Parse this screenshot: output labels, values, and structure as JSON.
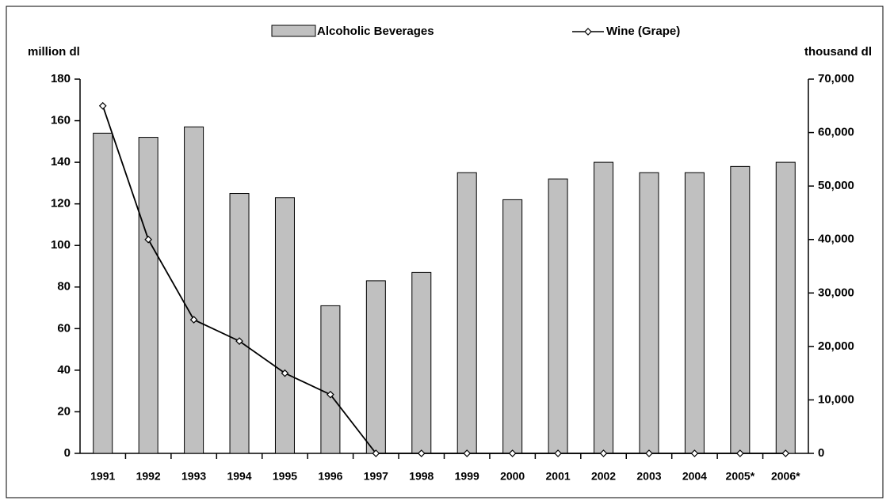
{
  "chart_data": {
    "type": "bar_line",
    "y_label": "million dl",
    "y2_label": "thousand dl",
    "categories": [
      "1991",
      "1992",
      "1993",
      "1994",
      "1995",
      "1996",
      "1997",
      "1998",
      "1999",
      "2000",
      "2001",
      "2002",
      "2003",
      "2004",
      "2005*",
      "2006*"
    ],
    "series": [
      {
        "name": "Alcoholic Beverages",
        "type": "bar",
        "color": "#c0c0c0",
        "axis": "y",
        "values": [
          154,
          152,
          157,
          125,
          123,
          71,
          83,
          87,
          135,
          122,
          132,
          140,
          135,
          135,
          138,
          140
        ]
      },
      {
        "name": "Wine (Grape)",
        "type": "line",
        "color": "#000000",
        "axis": "y2",
        "values": [
          65000,
          40000,
          25000,
          21000,
          15000,
          11000,
          0,
          0,
          0,
          0,
          0,
          0,
          0,
          0,
          0,
          0
        ]
      }
    ],
    "ylim": [
      0,
      180
    ],
    "yticks": [
      0,
      20,
      40,
      60,
      80,
      100,
      120,
      140,
      160,
      180
    ],
    "y2lim": [
      0,
      70000
    ],
    "y2ticks": [
      0,
      {
        "value": 10000,
        "label": "10,000"
      },
      {
        "value": 20000,
        "label": "20,000"
      },
      {
        "value": 30000,
        "label": "30,000"
      },
      {
        "value": 40000,
        "label": "40,000"
      },
      {
        "value": 50000,
        "label": "50,000"
      },
      {
        "value": 60000,
        "label": "60,000"
      },
      {
        "value": 70000,
        "label": "70,000"
      }
    ],
    "legend": "top"
  }
}
